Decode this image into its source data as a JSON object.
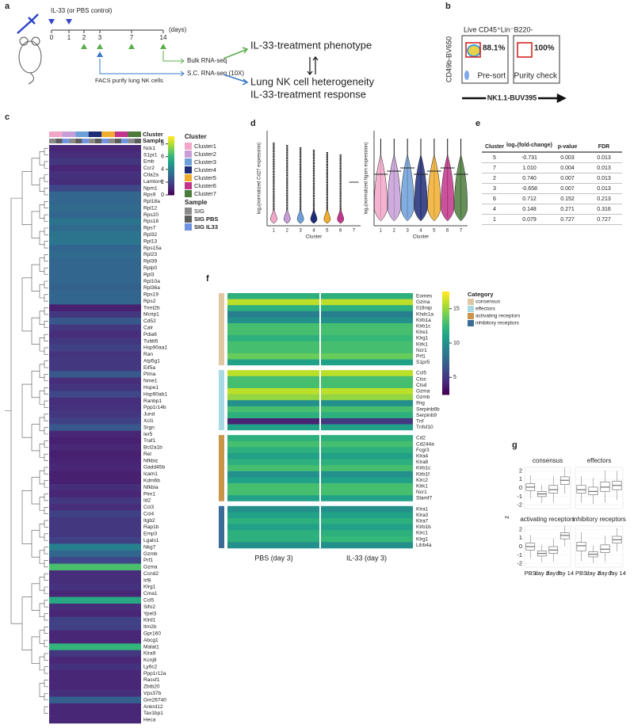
{
  "panel_labels": [
    "a",
    "b",
    "c",
    "d",
    "e",
    "f",
    "g"
  ],
  "a": {
    "injection": "IL-33 (or PBS control)",
    "days": [
      "0",
      "1",
      "2",
      "3",
      "7",
      "14"
    ],
    "days_unit": "(days)",
    "facs": "FACS purify lung NK cells",
    "bulk": "Bulk RNA-seq",
    "sc": "S.C. RNA-seq (10X)",
    "phenotype": "IL-33-treatment phenotype",
    "heterogeneity": "Lung NK cell heterogeneity",
    "response": "IL-33-treatment response"
  },
  "b": {
    "title": "Live CD45⁺Lin⁻B220-",
    "ylabel": "CD49b-BV650",
    "xlabel": "NK1.1-BUV395",
    "gates": [
      {
        "percent": "88.1%",
        "label": "Pre-sort"
      },
      {
        "percent": "100%",
        "label": "Purity check"
      }
    ]
  },
  "c": {
    "row_labels": [
      "Cluster",
      "Sample"
    ],
    "cluster_title": "Cluster",
    "clusters": [
      {
        "name": "Cluster1",
        "color": "#f2a7c9"
      },
      {
        "name": "Cluster2",
        "color": "#c79dd8"
      },
      {
        "name": "Cluster3",
        "color": "#6d9fd8"
      },
      {
        "name": "Cluster4",
        "color": "#1e2c78"
      },
      {
        "name": "Cluster5",
        "color": "#f0ad2e"
      },
      {
        "name": "Cluster6",
        "color": "#c2358a"
      },
      {
        "name": "Cluster7",
        "color": "#4c7b3c"
      }
    ],
    "sample_title": "Sample",
    "samples": [
      {
        "name": "SIG",
        "color": "#8a8a8a"
      },
      {
        "name": "SIG PBS",
        "color": "#5c5c5c"
      },
      {
        "name": "SIG IL33",
        "color": "#6f93e2"
      }
    ],
    "clim": [
      0,
      9.2
    ],
    "colorbar_ticks": [
      0,
      2,
      4,
      6,
      8
    ],
    "genes": [
      "Nck1",
      "S1pr1",
      "Emb",
      "Ccr2",
      "Ctla2a",
      "Lamtor4",
      "Npm1",
      "Rps9",
      "Rpl18a",
      "Rpl12",
      "Rps20",
      "Rps18",
      "Rps7",
      "Rpl32",
      "Rpl13",
      "Rps15a",
      "Rpl23",
      "Rpl39",
      "Rplp0",
      "Rpl3",
      "Rpl10a",
      "Rpl36a",
      "Rps19",
      "Rps2",
      "Trmt2b",
      "Mcrip1",
      "Cd52",
      "Calr",
      "Pdia6",
      "Tubb5",
      "Hsp90aa1",
      "Ran",
      "Atp5g1",
      "Eif5a",
      "Ptma",
      "Nme1",
      "Hspe1",
      "Hsp90ab1",
      "Ranbp1",
      "Ppp1r14b",
      "Jund",
      "Xcl1",
      "Srgn",
      "Ier5",
      "Traf1",
      "Bcl2a1b",
      "Rel",
      "Nfkbiz",
      "Gadd45b",
      "Icam1",
      "Kdm6b",
      "Nfkbia",
      "Pim1",
      "Id2",
      "Ccl3",
      "Ccl4",
      "Itgb2",
      "Rap1b",
      "Emp3",
      "Lgals1",
      "Nkg7",
      "Gzmb",
      "Prf1",
      "Gzma",
      "Ccnd2",
      "Irf8",
      "Klrg1",
      "Cma1",
      "Ccl5",
      "Slfn2",
      "Ypel3",
      "Klrd1",
      "Itm2b",
      "Gpr160",
      "Abcg1",
      "Malat1",
      "Klra9",
      "Kcnj8",
      "Ly6c2",
      "Ppp1r12a",
      "Rassf1",
      "Zbtb20",
      "Vps37b",
      "Gm26740",
      "Ankrd12",
      "Tax1bp1",
      "Heca"
    ],
    "values": [
      1,
      1.2,
      1.5,
      1,
      1.3,
      1.2,
      2,
      3,
      3,
      3.2,
      3,
      3.5,
      3.2,
      3.5,
      3.6,
      3,
      3.2,
      3,
      3,
      3,
      3,
      2.8,
      3,
      3,
      0.8,
      1.5,
      2.5,
      1.5,
      1.2,
      1.5,
      1.8,
      1.4,
      1.5,
      1.5,
      2.5,
      1.2,
      1.4,
      2,
      1.2,
      1.3,
      1.5,
      1.8,
      2.5,
      1,
      0.8,
      1,
      0.8,
      0.9,
      1,
      0.8,
      0.8,
      1.2,
      1,
      1.5,
      1.2,
      1.8,
      1.5,
      1.5,
      1.5,
      1.8,
      4,
      3,
      2,
      6.5,
      1.2,
      1.2,
      1.3,
      1,
      5.5,
      1.2,
      1,
      1.8,
      1.8,
      1,
      1,
      6,
      1.5,
      1,
      1.3,
      1,
      1,
      1,
      1.2,
      2.8,
      1,
      1,
      1
    ]
  },
  "d": {
    "ylabels": [
      "log₂(normalized Cd27 expression)",
      "log₂(normalized Itgam expression)"
    ],
    "xlabel": "Cluster",
    "categories": [
      "1",
      "2",
      "3",
      "4",
      "5",
      "6",
      "7"
    ]
  },
  "e": {
    "header": [
      "Cluster",
      "log₂(fold-change)",
      "p-value",
      "FDR"
    ],
    "rows": [
      [
        "5",
        "-0.731",
        "0.003",
        "0.013"
      ],
      [
        "7",
        "1.010",
        "0.004",
        "0.013"
      ],
      [
        "2",
        "0.740",
        "0.007",
        "0.013"
      ],
      [
        "3",
        "-0.658",
        "0.007",
        "0.013"
      ],
      [
        "6",
        "0.712",
        "0.152",
        "0.213"
      ],
      [
        "4",
        "0.148",
        "0.271",
        "0.316"
      ],
      [
        "1",
        "0.079",
        "0.727",
        "0.727"
      ]
    ]
  },
  "f": {
    "conditions": [
      "PBS (day 3)",
      "IL-33 (day 3)"
    ],
    "legend_title": "Category",
    "clim": [
      2.5,
      17.5
    ],
    "colorbar_ticks": [
      5,
      10,
      15
    ],
    "groups": [
      {
        "name": "consensus",
        "color": "#dfc7a3",
        "genes": [
          "Eomes",
          "Gzma",
          "Il18rap",
          "Khdc1a",
          "Klrb1a",
          "Klrb1c",
          "Klre1",
          "Klrg1",
          "Klrk1",
          "Ncr1",
          "Prf1",
          "S1pr5"
        ],
        "pbs": [
          12,
          16,
          12,
          9,
          10,
          13,
          13,
          12,
          13,
          13,
          14,
          11
        ],
        "il33": [
          12,
          16,
          12,
          9,
          10,
          13,
          13,
          12.5,
          13,
          13,
          14,
          11
        ]
      },
      {
        "name": "effectors",
        "color": "#a9d9e2",
        "genes": [
          "Ccl5",
          "Ctsc",
          "Ctsd",
          "Gzma",
          "Gzmb",
          "Ifng",
          "Serpinb6b",
          "Serpinb9",
          "Tnf",
          "Tnfsf10"
        ],
        "pbs": [
          16,
          13,
          13,
          16,
          15,
          10,
          13,
          12,
          4,
          11
        ],
        "il33": [
          16,
          13,
          13,
          16,
          15,
          10,
          13,
          12,
          5,
          11
        ]
      },
      {
        "name": "activating receptors",
        "color": "#c8954a",
        "genes": [
          "Cd2",
          "Cd244a",
          "Fcgr3",
          "Klra4",
          "Klra8",
          "Klrb1c",
          "Klrb1f",
          "Klrc2",
          "Klrk1",
          "Ncr1",
          "Slamf7"
        ],
        "pbs": [
          12,
          13,
          12,
          11,
          12,
          13,
          10,
          11,
          13,
          13,
          11
        ],
        "il33": [
          12,
          13,
          12,
          11,
          12,
          13,
          10,
          11,
          13,
          13,
          11
        ]
      },
      {
        "name": "inhibitory receptors",
        "color": "#3b6b97",
        "genes": [
          "Klra1",
          "Klra3",
          "Klra7",
          "Klrb1b",
          "Klrc1",
          "Klrg1",
          "Lilrb4a"
        ],
        "pbs": [
          10,
          11,
          12,
          11,
          12,
          12,
          10
        ],
        "il33": [
          10,
          11,
          12,
          11,
          12,
          12.5,
          10
        ]
      }
    ]
  },
  "g": {
    "ylabel": "z",
    "ylim": [
      -2.4,
      2.4
    ],
    "yticks": [
      -2,
      -1,
      0,
      1,
      2
    ],
    "categories": [
      "PBS",
      "day 2",
      "day 7",
      "day 14"
    ],
    "panels": [
      {
        "title": "consensus",
        "q1": [
          -0.3,
          -1,
          -0.6,
          0.4
        ],
        "median": [
          0.1,
          -0.7,
          -0.2,
          0.9
        ],
        "q3": [
          0.5,
          -0.4,
          0.3,
          1.3
        ]
      },
      {
        "title": "effectors",
        "q1": [
          -0.6,
          -0.8,
          -0.4,
          -0.2
        ],
        "median": [
          -0.2,
          -0.4,
          0.1,
          0.3
        ],
        "q3": [
          0.3,
          0.1,
          0.7,
          0.8
        ]
      },
      {
        "title": "activating receptors",
        "q1": [
          -0.4,
          -1.1,
          -0.8,
          0.9
        ],
        "median": [
          0,
          -0.8,
          -0.4,
          1.3
        ],
        "q3": [
          0.4,
          -0.5,
          0,
          1.6
        ]
      },
      {
        "title": "inhibitory receptors",
        "q1": [
          -0.5,
          -1.2,
          -0.7,
          0.4
        ],
        "median": [
          0.1,
          -0.9,
          -0.3,
          0.8
        ],
        "q3": [
          0.5,
          -0.6,
          0.2,
          1.2
        ]
      }
    ]
  }
}
